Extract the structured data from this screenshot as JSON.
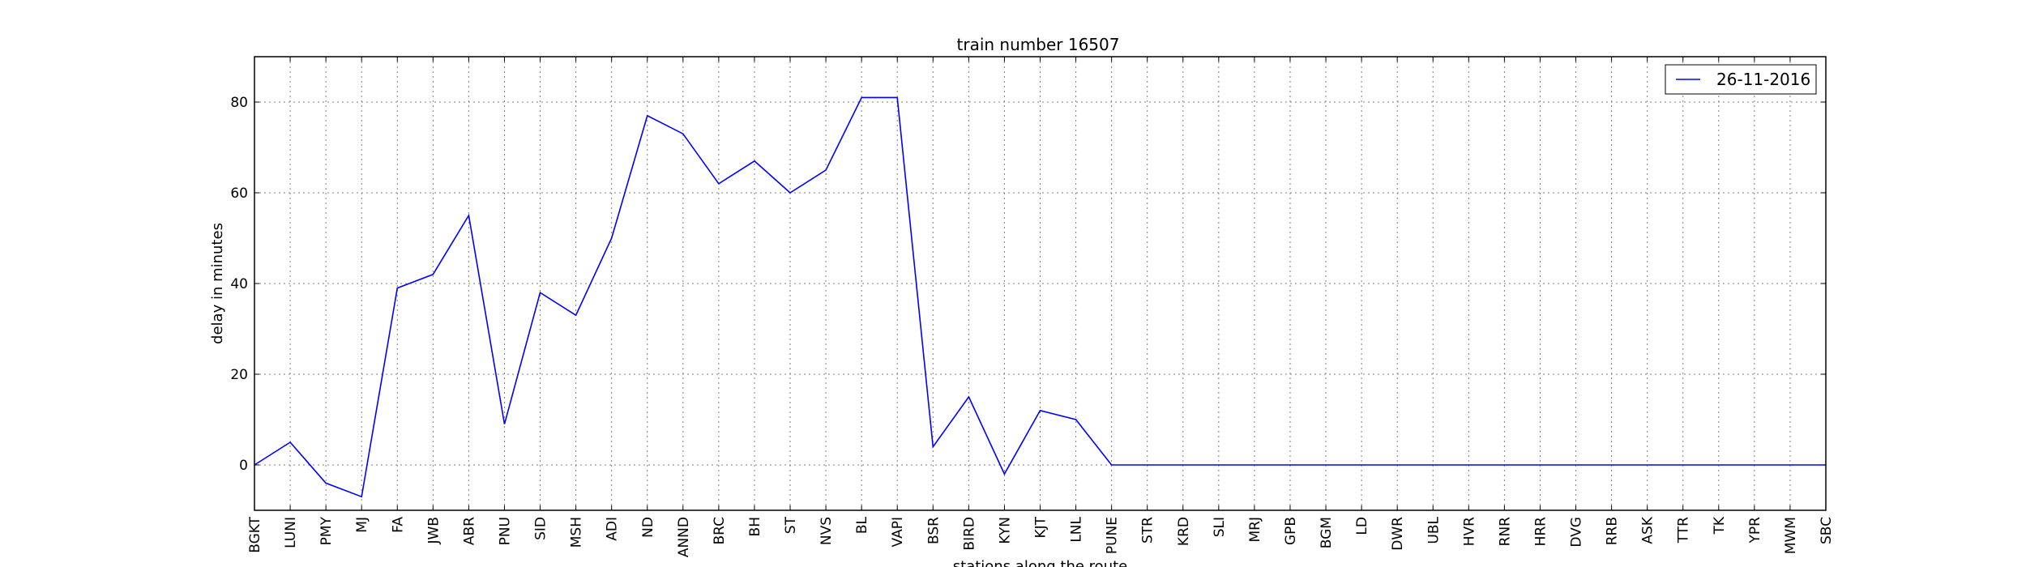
{
  "chart_data": {
    "type": "line",
    "title": "train number 16507",
    "xlabel": "stations along the route",
    "ylabel": "delay in minutes",
    "categories": [
      "BGKT",
      "LUNI",
      "PMY",
      "MJ",
      "FA",
      "JWB",
      "ABR",
      "PNU",
      "SID",
      "MSH",
      "ADI",
      "ND",
      "ANND",
      "BRC",
      "BH",
      "ST",
      "NVS",
      "BL",
      "VAPI",
      "BSR",
      "BIRD",
      "KYN",
      "KJT",
      "LNL",
      "PUNE",
      "STR",
      "KRD",
      "SLI",
      "MRJ",
      "GPB",
      "BGM",
      "LD",
      "DWR",
      "UBL",
      "HVR",
      "RNR",
      "HRR",
      "DVG",
      "RRB",
      "ASK",
      "TTR",
      "TK",
      "YPR",
      "MWM",
      "SBC"
    ],
    "series": [
      {
        "name": "26-11-2016",
        "color": "#0000ff",
        "values": [
          0,
          5,
          -4,
          -7,
          39,
          42,
          55,
          9,
          38,
          33,
          50,
          77,
          73,
          62,
          67,
          60,
          65,
          81,
          81,
          4,
          15,
          -2,
          12,
          10,
          0,
          0,
          0,
          0,
          0,
          0,
          0,
          0,
          0,
          0,
          0,
          0,
          0,
          0,
          0,
          0,
          0,
          0,
          0,
          0,
          0
        ]
      }
    ],
    "ylim": [
      -10,
      90
    ],
    "yticks": [
      0,
      20,
      40,
      60,
      80
    ],
    "grid": true,
    "legend_position": "upper right"
  }
}
